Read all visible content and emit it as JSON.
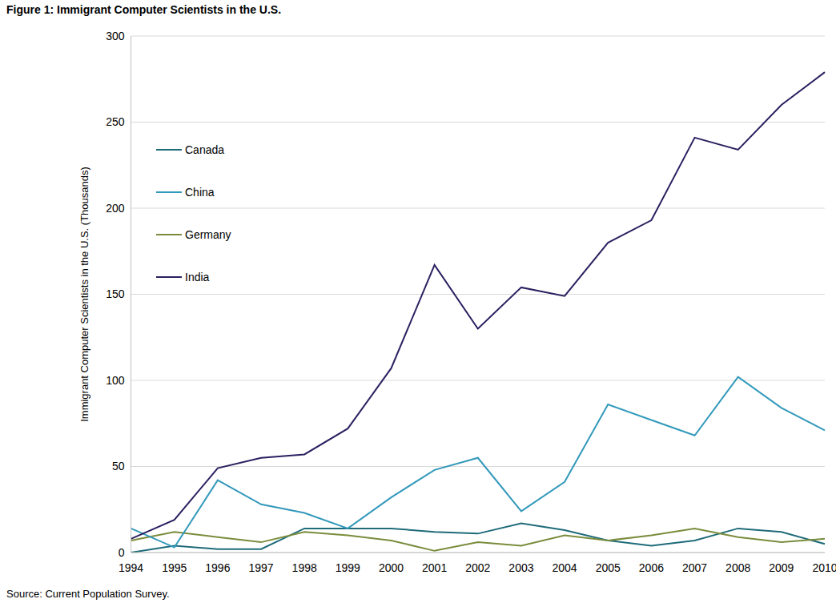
{
  "chart_data": {
    "type": "line",
    "title": "Figure 1: Immigrant Computer Scientists in the U.S.",
    "subtitle": "Source: Current Population Survey.",
    "y_label": "Immigrant Computer Scientists in the U.S. (Thousands)",
    "categories": [
      "1994",
      "1995",
      "1996",
      "1997",
      "1998",
      "1999",
      "2000",
      "2001",
      "2002",
      "2003",
      "2004",
      "2005",
      "2006",
      "2007",
      "2008",
      "2009",
      "2010"
    ],
    "series": [
      {
        "name": "Canada",
        "color": "#1f6b7a",
        "values": [
          0,
          4,
          2,
          2,
          14,
          14,
          14,
          12,
          11,
          17,
          13,
          7,
          4,
          7,
          14,
          12,
          5
        ]
      },
      {
        "name": "Germany",
        "color": "#7a8c3c",
        "values": [
          7,
          12,
          9,
          6,
          12,
          10,
          7,
          1,
          6,
          4,
          10,
          7,
          10,
          14,
          9,
          6,
          8
        ]
      },
      {
        "name": "China",
        "color": "#3399bb",
        "values": [
          14,
          3,
          42,
          28,
          23,
          14,
          32,
          48,
          55,
          24,
          41,
          86,
          77,
          68,
          102,
          84,
          71
        ]
      },
      {
        "name": "India",
        "color": "#2b2060",
        "values": [
          8,
          19,
          49,
          55,
          57,
          72,
          107,
          167,
          130,
          154,
          149,
          180,
          193,
          241,
          234,
          260,
          279
        ]
      }
    ],
    "ylim": [
      0,
      300
    ],
    "yticks": [
      0,
      50,
      100,
      150,
      200,
      250,
      300
    ],
    "grid": true,
    "legend": "upper left"
  }
}
